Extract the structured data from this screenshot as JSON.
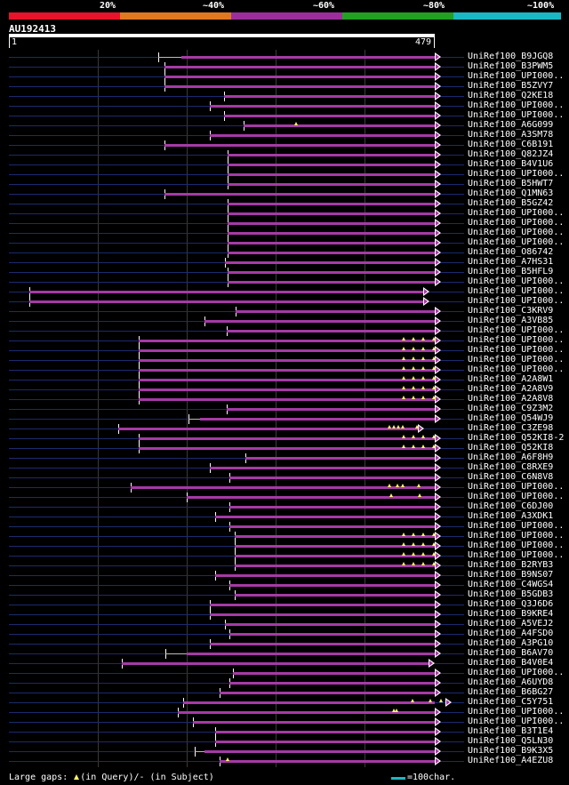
{
  "legend": {
    "segments": [
      {
        "color": "#e8132a"
      },
      {
        "color": "#e07820"
      },
      {
        "color": "#9c2e9c"
      },
      {
        "color": "#22a022"
      },
      {
        "color": "#1ab8c4"
      }
    ],
    "ticks": [
      "20%",
      "~40%",
      "~60%",
      "~80%",
      "~100%"
    ]
  },
  "query": {
    "id": "AU192413",
    "start_label": "1",
    "end_label": "479",
    "length": 479
  },
  "hits": [
    {
      "name": "UniRef100_B9JGQ8",
      "start": 168,
      "end": 479,
      "gap": [
        168,
        194
      ],
      "markers": [],
      "extends": true
    },
    {
      "name": "UniRef100_B3PWM5",
      "start": 175,
      "end": 479,
      "markers": [],
      "extends": true
    },
    {
      "name": "UniRef100_UPI000..",
      "start": 175,
      "end": 479,
      "markers": [],
      "extends": true
    },
    {
      "name": "UniRef100_B5ZVY7",
      "start": 175,
      "end": 479,
      "markers": [],
      "extends": true
    },
    {
      "name": "UniRef100_Q2KE18",
      "start": 242,
      "end": 479,
      "markers": [],
      "extends": true
    },
    {
      "name": "UniRef100_UPI000..",
      "start": 226,
      "end": 479,
      "markers": [],
      "extends": true
    },
    {
      "name": "UniRef100_UPI000..",
      "start": 242,
      "end": 479,
      "markers": [],
      "extends": true
    },
    {
      "name": "UniRef100_A6G099",
      "start": 264,
      "end": 479,
      "markers": [
        323
      ],
      "extends": true
    },
    {
      "name": "UniRef100_A3SM78",
      "start": 226,
      "end": 479,
      "markers": [],
      "extends": true
    },
    {
      "name": "UniRef100_C6B191",
      "start": 175,
      "end": 479,
      "markers": [],
      "extends": true
    },
    {
      "name": "UniRef100_Q82JZ4",
      "start": 246,
      "end": 479,
      "markers": [],
      "extends": true
    },
    {
      "name": "UniRef100_B4V1U6",
      "start": 246,
      "end": 479,
      "markers": [],
      "extends": true
    },
    {
      "name": "UniRef100_UPI000..",
      "start": 246,
      "end": 479,
      "markers": [],
      "extends": true
    },
    {
      "name": "UniRef100_B5HWT7",
      "start": 246,
      "end": 479,
      "markers": [],
      "extends": true
    },
    {
      "name": "UniRef100_Q1MN63",
      "start": 175,
      "end": 479,
      "markers": [],
      "extends": true
    },
    {
      "name": "UniRef100_B5GZ42",
      "start": 246,
      "end": 479,
      "markers": [],
      "extends": true
    },
    {
      "name": "UniRef100_UPI000..",
      "start": 246,
      "end": 479,
      "markers": [],
      "extends": true
    },
    {
      "name": "UniRef100_UPI000..",
      "start": 246,
      "end": 479,
      "markers": [],
      "extends": true
    },
    {
      "name": "UniRef100_UPI000..",
      "start": 246,
      "end": 479,
      "markers": [],
      "extends": true
    },
    {
      "name": "UniRef100_UPI000..",
      "start": 246,
      "end": 479,
      "markers": [],
      "extends": true
    },
    {
      "name": "UniRef100_O86742",
      "start": 246,
      "end": 479,
      "markers": [],
      "extends": true
    },
    {
      "name": "UniRef100_A7HS31",
      "start": 243,
      "end": 479,
      "markers": [],
      "extends": true
    },
    {
      "name": "UniRef100_B5HFL9",
      "start": 246,
      "end": 479,
      "markers": [],
      "extends": true
    },
    {
      "name": "UniRef100_UPI000..",
      "start": 246,
      "end": 479,
      "markers": [],
      "extends": true
    },
    {
      "name": "UniRef100_UPI000..",
      "start": 23,
      "end": 466,
      "markers": [],
      "extends": true
    },
    {
      "name": "UniRef100_UPI000..",
      "start": 23,
      "end": 466,
      "markers": [],
      "extends": true
    },
    {
      "name": "UniRef100_C3KRV9",
      "start": 255,
      "end": 479,
      "markers": [],
      "extends": true
    },
    {
      "name": "UniRef100_A3VB85",
      "start": 220,
      "end": 479,
      "markers": [],
      "extends": true
    },
    {
      "name": "UniRef100_UPI000..",
      "start": 245,
      "end": 479,
      "markers": [],
      "extends": true
    },
    {
      "name": "UniRef100_UPI000..",
      "start": 146,
      "end": 479,
      "markers": [
        444,
        455,
        466,
        478
      ],
      "extends": true
    },
    {
      "name": "UniRef100_UPI000..",
      "start": 146,
      "end": 479,
      "markers": [
        444,
        455,
        466,
        478
      ],
      "extends": true
    },
    {
      "name": "UniRef100_UPI000..",
      "start": 146,
      "end": 479,
      "markers": [
        444,
        455,
        466,
        478
      ],
      "extends": true
    },
    {
      "name": "UniRef100_UPI000..",
      "start": 146,
      "end": 479,
      "markers": [
        444,
        455,
        466,
        478
      ],
      "extends": true
    },
    {
      "name": "UniRef100_A2A8W1",
      "start": 146,
      "end": 479,
      "markers": [
        444,
        455,
        466,
        478
      ],
      "extends": true
    },
    {
      "name": "UniRef100_A2A8V9",
      "start": 146,
      "end": 479,
      "markers": [
        444,
        455,
        466,
        478
      ],
      "extends": true
    },
    {
      "name": "UniRef100_A2A8V8",
      "start": 146,
      "end": 479,
      "markers": [
        444,
        455,
        466,
        478
      ],
      "extends": true
    },
    {
      "name": "UniRef100_C9Z3M2",
      "start": 245,
      "end": 479,
      "markers": [],
      "extends": true
    },
    {
      "name": "UniRef100_Q54WJ9",
      "start": 202,
      "end": 479,
      "gap": [
        202,
        215
      ],
      "markers": [],
      "extends": true
    },
    {
      "name": "UniRef100_C3ZE98",
      "start": 123,
      "end": 460,
      "markers": [
        428,
        433,
        438,
        443,
        459
      ],
      "extends": true
    },
    {
      "name": "UniRef100_Q52KI8-2",
      "start": 146,
      "end": 479,
      "markers": [
        444,
        455,
        466,
        478
      ],
      "extends": true
    },
    {
      "name": "UniRef100_Q52KI8",
      "start": 146,
      "end": 479,
      "markers": [
        444,
        455,
        466,
        478
      ],
      "extends": true
    },
    {
      "name": "UniRef100_A6F8H9",
      "start": 266,
      "end": 479,
      "markers": [],
      "extends": true
    },
    {
      "name": "UniRef100_C8RXE9",
      "start": 226,
      "end": 479,
      "markers": [],
      "extends": true
    },
    {
      "name": "UniRef100_C6N8V8",
      "start": 248,
      "end": 479,
      "markers": [],
      "extends": true
    },
    {
      "name": "UniRef100_UPI000..",
      "start": 137,
      "end": 479,
      "markers": [
        428,
        437,
        443,
        461
      ],
      "extends": true
    },
    {
      "name": "UniRef100_UPI000..",
      "start": 200,
      "end": 479,
      "markers": [
        430,
        462
      ],
      "extends": true
    },
    {
      "name": "UniRef100_C6DJ00",
      "start": 248,
      "end": 479,
      "markers": [],
      "extends": true
    },
    {
      "name": "UniRef100_A3XDK1",
      "start": 232,
      "end": 479,
      "markers": [],
      "extends": true
    },
    {
      "name": "UniRef100_UPI000..",
      "start": 248,
      "end": 479,
      "markers": [],
      "extends": true
    },
    {
      "name": "UniRef100_UPI000..",
      "start": 254,
      "end": 479,
      "markers": [
        444,
        455,
        466,
        478
      ],
      "extends": true
    },
    {
      "name": "UniRef100_UPI000..",
      "start": 254,
      "end": 479,
      "markers": [
        444,
        455,
        466,
        478
      ],
      "extends": true
    },
    {
      "name": "UniRef100_UPI000..",
      "start": 254,
      "end": 479,
      "markers": [
        444,
        455,
        466,
        478
      ],
      "extends": true
    },
    {
      "name": "UniRef100_B2RYB3",
      "start": 254,
      "end": 479,
      "markers": [
        444,
        455,
        466,
        478
      ],
      "extends": true
    },
    {
      "name": "UniRef100_B9NS07",
      "start": 232,
      "end": 479,
      "markers": [],
      "extends": true
    },
    {
      "name": "UniRef100_C4WGS4",
      "start": 248,
      "end": 479,
      "markers": [],
      "extends": true
    },
    {
      "name": "UniRef100_B5GDB3",
      "start": 254,
      "end": 479,
      "markers": [],
      "extends": true
    },
    {
      "name": "UniRef100_Q3J6D6",
      "start": 226,
      "end": 479,
      "markers": [],
      "extends": true
    },
    {
      "name": "UniRef100_B9KRE4",
      "start": 226,
      "end": 479,
      "markers": [],
      "extends": true
    },
    {
      "name": "UniRef100_A5VEJ2",
      "start": 243,
      "end": 479,
      "markers": [],
      "extends": true
    },
    {
      "name": "UniRef100_A4FSD0",
      "start": 248,
      "end": 479,
      "markers": [],
      "extends": true
    },
    {
      "name": "UniRef100_A3PG10",
      "start": 226,
      "end": 479,
      "markers": [],
      "extends": true
    },
    {
      "name": "UniRef100_B6AV70",
      "start": 176,
      "end": 479,
      "gap": [
        176,
        200
      ],
      "markers": [],
      "extends": true
    },
    {
      "name": "UniRef100_B4V0E4",
      "start": 127,
      "end": 472,
      "markers": [],
      "extends": true
    },
    {
      "name": "UniRef100_UPI000..",
      "start": 252,
      "end": 479,
      "markers": [],
      "extends": true
    },
    {
      "name": "UniRef100_A6UYD8",
      "start": 248,
      "end": 479,
      "markers": [],
      "extends": true
    },
    {
      "name": "UniRef100_B6BG27",
      "start": 237,
      "end": 479,
      "markers": [],
      "extends": true
    },
    {
      "name": "UniRef100_C5Y751",
      "start": 196,
      "end": 479,
      "markers": [
        454,
        474,
        486
      ],
      "extends": true
    },
    {
      "name": "UniRef100_UPI000..",
      "start": 190,
      "end": 479,
      "markers": [
        433,
        436
      ],
      "extends": true
    },
    {
      "name": "UniRef100_UPI000..",
      "start": 207,
      "end": 479,
      "markers": [],
      "extends": true
    },
    {
      "name": "UniRef100_B3T1E4",
      "start": 232,
      "end": 479,
      "markers": [],
      "extends": true
    },
    {
      "name": "UniRef100_Q5LN30",
      "start": 232,
      "end": 479,
      "markers": [],
      "extends": true
    },
    {
      "name": "UniRef100_B9K3X5",
      "start": 209,
      "end": 479,
      "gap": [
        209,
        220
      ],
      "markers": [],
      "extends": true
    },
    {
      "name": "UniRef100_A4EZU8",
      "start": 237,
      "end": 479,
      "markers": [
        246
      ],
      "extends": true
    }
  ],
  "footer": {
    "large_gaps": "Large gaps:",
    "in_query": "(in Query)/",
    "in_subject": "- (in Subject)",
    "scale_text": "=100char."
  }
}
